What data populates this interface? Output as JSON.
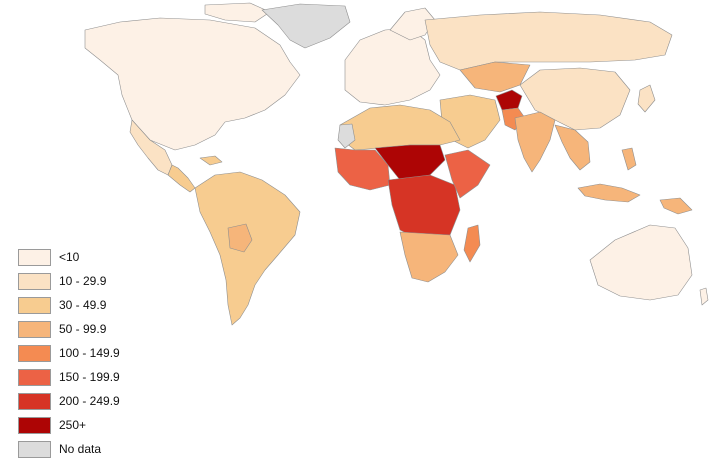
{
  "legend": {
    "items": [
      {
        "label": "<10",
        "color": "#fdf1e6"
      },
      {
        "label": "10 - 29.9",
        "color": "#fbe2c4"
      },
      {
        "label": "30 - 49.9",
        "color": "#f7cc90"
      },
      {
        "label": "50 - 99.9",
        "color": "#f6b57a"
      },
      {
        "label": "100 - 149.9",
        "color": "#f48b52"
      },
      {
        "label": "150 - 199.9",
        "color": "#ec6245"
      },
      {
        "label": "200 - 249.9",
        "color": "#d63425"
      },
      {
        "label": "250+",
        "color": "#ad0505"
      },
      {
        "label": "No data",
        "color": "#dcdcdc"
      }
    ]
  },
  "regions": [
    {
      "name": "North America",
      "class": "<10"
    },
    {
      "name": "Greenland",
      "class": "No data"
    },
    {
      "name": "Mexico",
      "class": "10 - 29.9"
    },
    {
      "name": "Central America",
      "class": "30 - 49.9"
    },
    {
      "name": "South America",
      "class": "30 - 49.9"
    },
    {
      "name": "Bolivia",
      "class": "50 - 99.9"
    },
    {
      "name": "Europe",
      "class": "<10"
    },
    {
      "name": "Russia",
      "class": "10 - 29.9"
    },
    {
      "name": "Central Asia",
      "class": "50 - 99.9"
    },
    {
      "name": "Middle East",
      "class": "30 - 49.9"
    },
    {
      "name": "Afghanistan",
      "class": "250+"
    },
    {
      "name": "Pakistan",
      "class": "100 - 149.9"
    },
    {
      "name": "India",
      "class": "50 - 99.9"
    },
    {
      "name": "China",
      "class": "10 - 29.9"
    },
    {
      "name": "Southeast Asia",
      "class": "50 - 99.9"
    },
    {
      "name": "Indonesia",
      "class": "50 - 99.9"
    },
    {
      "name": "Papua New Guinea",
      "class": "50 - 99.9"
    },
    {
      "name": "Australia",
      "class": "<10"
    },
    {
      "name": "North Africa",
      "class": "30 - 49.9"
    },
    {
      "name": "Western Sahara",
      "class": "No data"
    },
    {
      "name": "West Africa",
      "class": "150 - 199.9"
    },
    {
      "name": "Sahel",
      "class": "250+"
    },
    {
      "name": "Central Africa",
      "class": "200 - 249.9"
    },
    {
      "name": "Horn of Africa",
      "class": "150 - 199.9"
    },
    {
      "name": "Southern Africa",
      "class": "50 - 99.9"
    },
    {
      "name": "Madagascar",
      "class": "100 - 149.9"
    }
  ]
}
